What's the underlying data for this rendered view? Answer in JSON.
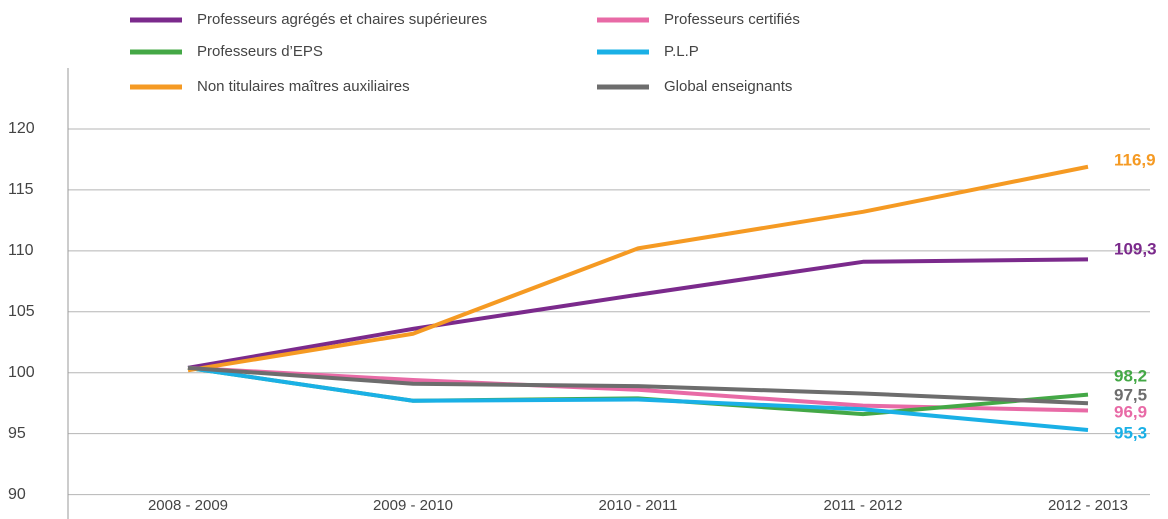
{
  "chart_data": {
    "type": "line",
    "categories": [
      "2008 - 2009",
      "2009 - 2010",
      "2010 - 2011",
      "2011 - 2012",
      "2012 - 2013"
    ],
    "series": [
      {
        "name": "Professeurs agrégés et chaires supérieures",
        "color": "#7b2a8c",
        "values": [
          100.4,
          103.6,
          106.4,
          109.1,
          109.3
        ],
        "value_labels": [
          null,
          null,
          null,
          null,
          "109,3"
        ]
      },
      {
        "name": "Professeurs certifiés",
        "color": "#e86aa6",
        "values": [
          100.4,
          99.4,
          98.6,
          97.3,
          96.9
        ],
        "value_labels": [
          null,
          null,
          null,
          null,
          "96,9"
        ]
      },
      {
        "name": "Professeurs d’EPS",
        "color": "#44a846",
        "values": [
          100.4,
          97.7,
          97.9,
          96.6,
          98.2
        ],
        "value_labels": [
          null,
          null,
          null,
          null,
          "98,2"
        ]
      },
      {
        "name": "P.L.P",
        "color": "#1ab0e6",
        "values": [
          100.4,
          97.7,
          97.8,
          97.0,
          95.3
        ],
        "value_labels": [
          null,
          null,
          null,
          null,
          "95,3"
        ]
      },
      {
        "name": "Non titulaires maîtres auxiliaires",
        "color": "#f59a23",
        "values": [
          100.2,
          103.2,
          110.2,
          113.2,
          116.9
        ],
        "value_labels": [
          null,
          null,
          null,
          null,
          "116,9"
        ]
      },
      {
        "name": "Global enseignants",
        "color": "#6d6d6d",
        "values": [
          100.4,
          99.1,
          98.9,
          98.3,
          97.5
        ],
        "value_labels": [
          null,
          null,
          null,
          null,
          "97,5"
        ]
      }
    ],
    "ylim": [
      88,
      125
    ],
    "yticks": [
      90,
      95,
      100,
      105,
      110,
      115,
      120
    ],
    "grid": true
  }
}
